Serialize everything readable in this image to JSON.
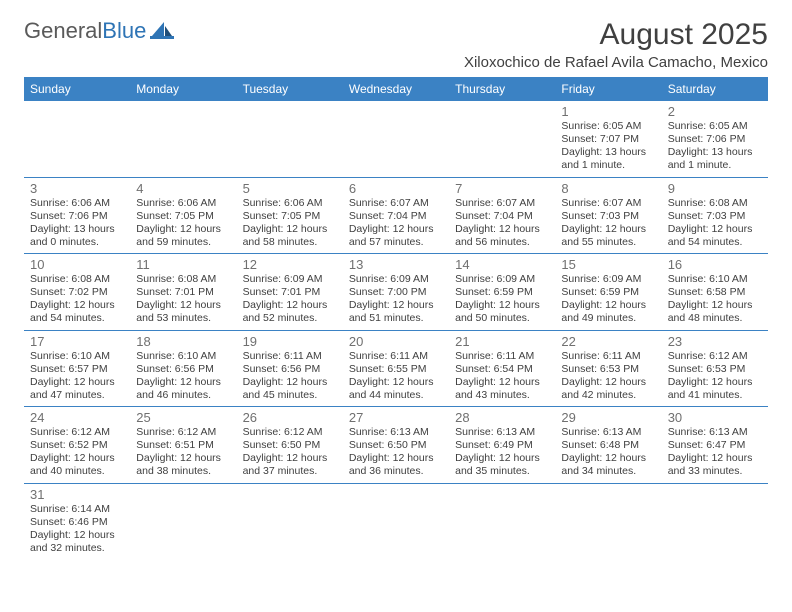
{
  "logo": {
    "general": "General",
    "blue": "Blue"
  },
  "title": "August 2025",
  "subtitle": "Xiloxochico de Rafael Avila Camacho, Mexico",
  "colors": {
    "header_bg": "#3b82c4",
    "header_text": "#ffffff",
    "border": "#3b82c4",
    "daynum": "#707070",
    "body_text": "#404040",
    "logo_gray": "#5a5a5a",
    "logo_blue": "#2e74b5"
  },
  "day_headers": [
    "Sunday",
    "Monday",
    "Tuesday",
    "Wednesday",
    "Thursday",
    "Friday",
    "Saturday"
  ],
  "weeks": [
    [
      null,
      null,
      null,
      null,
      null,
      {
        "n": "1",
        "sr": "Sunrise: 6:05 AM",
        "ss": "Sunset: 7:07 PM",
        "dl": "Daylight: 13 hours and 1 minute."
      },
      {
        "n": "2",
        "sr": "Sunrise: 6:05 AM",
        "ss": "Sunset: 7:06 PM",
        "dl": "Daylight: 13 hours and 1 minute."
      }
    ],
    [
      {
        "n": "3",
        "sr": "Sunrise: 6:06 AM",
        "ss": "Sunset: 7:06 PM",
        "dl": "Daylight: 13 hours and 0 minutes."
      },
      {
        "n": "4",
        "sr": "Sunrise: 6:06 AM",
        "ss": "Sunset: 7:05 PM",
        "dl": "Daylight: 12 hours and 59 minutes."
      },
      {
        "n": "5",
        "sr": "Sunrise: 6:06 AM",
        "ss": "Sunset: 7:05 PM",
        "dl": "Daylight: 12 hours and 58 minutes."
      },
      {
        "n": "6",
        "sr": "Sunrise: 6:07 AM",
        "ss": "Sunset: 7:04 PM",
        "dl": "Daylight: 12 hours and 57 minutes."
      },
      {
        "n": "7",
        "sr": "Sunrise: 6:07 AM",
        "ss": "Sunset: 7:04 PM",
        "dl": "Daylight: 12 hours and 56 minutes."
      },
      {
        "n": "8",
        "sr": "Sunrise: 6:07 AM",
        "ss": "Sunset: 7:03 PM",
        "dl": "Daylight: 12 hours and 55 minutes."
      },
      {
        "n": "9",
        "sr": "Sunrise: 6:08 AM",
        "ss": "Sunset: 7:03 PM",
        "dl": "Daylight: 12 hours and 54 minutes."
      }
    ],
    [
      {
        "n": "10",
        "sr": "Sunrise: 6:08 AM",
        "ss": "Sunset: 7:02 PM",
        "dl": "Daylight: 12 hours and 54 minutes."
      },
      {
        "n": "11",
        "sr": "Sunrise: 6:08 AM",
        "ss": "Sunset: 7:01 PM",
        "dl": "Daylight: 12 hours and 53 minutes."
      },
      {
        "n": "12",
        "sr": "Sunrise: 6:09 AM",
        "ss": "Sunset: 7:01 PM",
        "dl": "Daylight: 12 hours and 52 minutes."
      },
      {
        "n": "13",
        "sr": "Sunrise: 6:09 AM",
        "ss": "Sunset: 7:00 PM",
        "dl": "Daylight: 12 hours and 51 minutes."
      },
      {
        "n": "14",
        "sr": "Sunrise: 6:09 AM",
        "ss": "Sunset: 6:59 PM",
        "dl": "Daylight: 12 hours and 50 minutes."
      },
      {
        "n": "15",
        "sr": "Sunrise: 6:09 AM",
        "ss": "Sunset: 6:59 PM",
        "dl": "Daylight: 12 hours and 49 minutes."
      },
      {
        "n": "16",
        "sr": "Sunrise: 6:10 AM",
        "ss": "Sunset: 6:58 PM",
        "dl": "Daylight: 12 hours and 48 minutes."
      }
    ],
    [
      {
        "n": "17",
        "sr": "Sunrise: 6:10 AM",
        "ss": "Sunset: 6:57 PM",
        "dl": "Daylight: 12 hours and 47 minutes."
      },
      {
        "n": "18",
        "sr": "Sunrise: 6:10 AM",
        "ss": "Sunset: 6:56 PM",
        "dl": "Daylight: 12 hours and 46 minutes."
      },
      {
        "n": "19",
        "sr": "Sunrise: 6:11 AM",
        "ss": "Sunset: 6:56 PM",
        "dl": "Daylight: 12 hours and 45 minutes."
      },
      {
        "n": "20",
        "sr": "Sunrise: 6:11 AM",
        "ss": "Sunset: 6:55 PM",
        "dl": "Daylight: 12 hours and 44 minutes."
      },
      {
        "n": "21",
        "sr": "Sunrise: 6:11 AM",
        "ss": "Sunset: 6:54 PM",
        "dl": "Daylight: 12 hours and 43 minutes."
      },
      {
        "n": "22",
        "sr": "Sunrise: 6:11 AM",
        "ss": "Sunset: 6:53 PM",
        "dl": "Daylight: 12 hours and 42 minutes."
      },
      {
        "n": "23",
        "sr": "Sunrise: 6:12 AM",
        "ss": "Sunset: 6:53 PM",
        "dl": "Daylight: 12 hours and 41 minutes."
      }
    ],
    [
      {
        "n": "24",
        "sr": "Sunrise: 6:12 AM",
        "ss": "Sunset: 6:52 PM",
        "dl": "Daylight: 12 hours and 40 minutes."
      },
      {
        "n": "25",
        "sr": "Sunrise: 6:12 AM",
        "ss": "Sunset: 6:51 PM",
        "dl": "Daylight: 12 hours and 38 minutes."
      },
      {
        "n": "26",
        "sr": "Sunrise: 6:12 AM",
        "ss": "Sunset: 6:50 PM",
        "dl": "Daylight: 12 hours and 37 minutes."
      },
      {
        "n": "27",
        "sr": "Sunrise: 6:13 AM",
        "ss": "Sunset: 6:50 PM",
        "dl": "Daylight: 12 hours and 36 minutes."
      },
      {
        "n": "28",
        "sr": "Sunrise: 6:13 AM",
        "ss": "Sunset: 6:49 PM",
        "dl": "Daylight: 12 hours and 35 minutes."
      },
      {
        "n": "29",
        "sr": "Sunrise: 6:13 AM",
        "ss": "Sunset: 6:48 PM",
        "dl": "Daylight: 12 hours and 34 minutes."
      },
      {
        "n": "30",
        "sr": "Sunrise: 6:13 AM",
        "ss": "Sunset: 6:47 PM",
        "dl": "Daylight: 12 hours and 33 minutes."
      }
    ],
    [
      {
        "n": "31",
        "sr": "Sunrise: 6:14 AM",
        "ss": "Sunset: 6:46 PM",
        "dl": "Daylight: 12 hours and 32 minutes."
      },
      null,
      null,
      null,
      null,
      null,
      null
    ]
  ]
}
